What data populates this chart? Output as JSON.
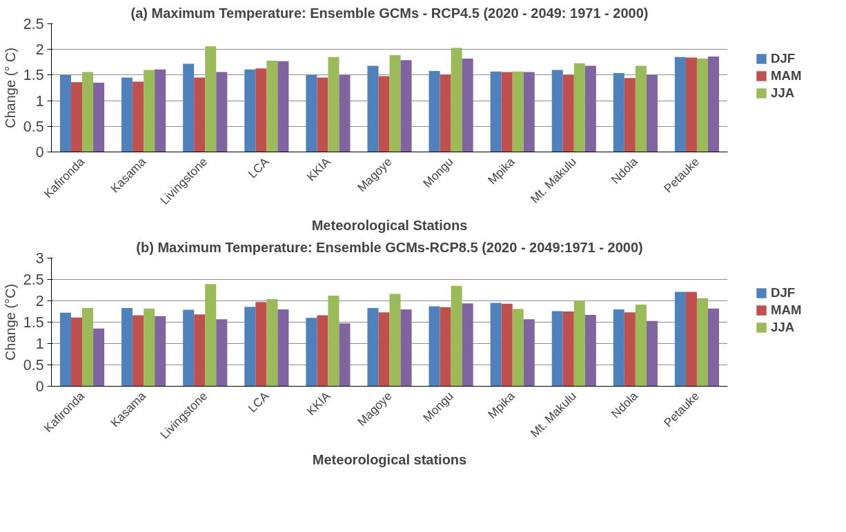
{
  "chart_data": [
    {
      "type": "bar",
      "title": "(a) Maximum Temperature: Ensemble GCMs - RCP4.5 (2020 - 2049: 1971 - 2000)",
      "xlabel": "Meteorological Stations",
      "ylabel": "Change (° C)",
      "categories": [
        "Kafironda",
        "Kasama",
        "Livingstone",
        "LCA",
        "KKIA",
        "Magoye",
        "Mongu",
        "Mpika",
        "Mt. Makulu",
        "Ndola",
        "Petauke"
      ],
      "series": [
        {
          "name": "DJF",
          "color": "#4f81bd",
          "values": [
            1.5,
            1.45,
            1.72,
            1.61,
            1.5,
            1.68,
            1.58,
            1.57,
            1.6,
            1.54,
            1.85
          ]
        },
        {
          "name": "MAM",
          "color": "#c0504d",
          "values": [
            1.36,
            1.37,
            1.45,
            1.63,
            1.45,
            1.48,
            1.51,
            1.56,
            1.5,
            1.44,
            1.84
          ]
        },
        {
          "name": "JJA",
          "color": "#9bbb59",
          "values": [
            1.56,
            1.6,
            2.06,
            1.78,
            1.85,
            1.89,
            2.03,
            1.57,
            1.73,
            1.68,
            1.82
          ]
        },
        {
          "color": "#8064a2",
          "values": [
            1.35,
            1.61,
            1.56,
            1.77,
            1.5,
            1.79,
            1.82,
            1.56,
            1.68,
            1.5,
            1.86
          ]
        }
      ],
      "ylim": [
        0,
        2.5
      ],
      "yticks": [
        0,
        0.5,
        1,
        1.5,
        2,
        2.5
      ],
      "grid": "y",
      "legend": "right"
    },
    {
      "type": "bar",
      "title": "(b) Maximum Temperature: Ensemble GCMs-RCP8.5 (2020 - 2049:1971 - 2000)",
      "xlabel": "Meteorological stations",
      "ylabel": "Change (°C)",
      "categories": [
        "Kafironda",
        "Kasama",
        "Livingstone",
        "LCA",
        "KKIA",
        "Magoye",
        "Mongu",
        "Mpika",
        "Mt. Makulu",
        "Ndola",
        "Petauke"
      ],
      "series": [
        {
          "name": "DJF",
          "color": "#4f81bd",
          "values": [
            1.72,
            1.83,
            1.79,
            1.86,
            1.6,
            1.83,
            1.87,
            1.95,
            1.76,
            1.8,
            2.21
          ]
        },
        {
          "name": "MAM",
          "color": "#c0504d",
          "values": [
            1.61,
            1.66,
            1.68,
            1.97,
            1.66,
            1.73,
            1.85,
            1.93,
            1.75,
            1.73,
            2.21
          ]
        },
        {
          "name": "JJA",
          "color": "#9bbb59",
          "values": [
            1.83,
            1.82,
            2.39,
            2.04,
            2.12,
            2.16,
            2.35,
            1.81,
            2.0,
            1.91,
            2.06
          ]
        },
        {
          "color": "#8064a2",
          "values": [
            1.35,
            1.64,
            1.57,
            1.8,
            1.47,
            1.8,
            1.94,
            1.57,
            1.67,
            1.53,
            1.82
          ]
        }
      ],
      "ylim": [
        0,
        3
      ],
      "yticks": [
        0,
        0.5,
        1,
        1.5,
        2,
        2.5,
        3
      ],
      "grid": "y",
      "legend": "right"
    }
  ]
}
